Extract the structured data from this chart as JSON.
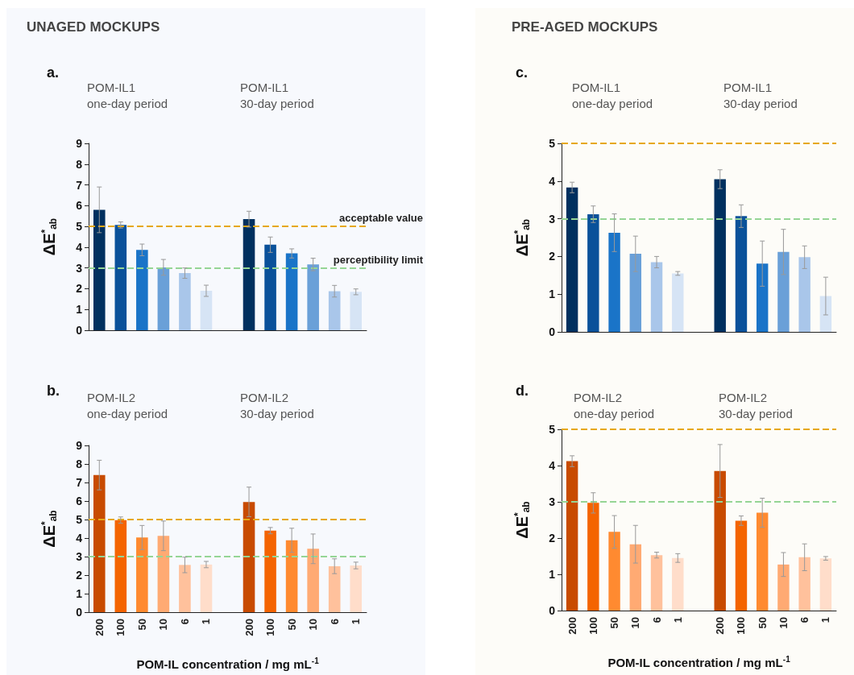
{
  "chart_data": [
    {
      "type": "bar",
      "title": "UNAGED MOCKUPS",
      "ylabel": "ΔE$^{*}$$_{ab}$",
      "annotations": [
        "a.",
        "POM-IL1\none-day period",
        "POM-IL1\n30-day period"
      ],
      "categories": [
        "200",
        "100",
        "50",
        "10",
        "6",
        "1",
        null,
        "200",
        "100",
        "50",
        "10",
        "6",
        "1"
      ],
      "values": [
        5.8,
        5.07,
        3.87,
        3.03,
        2.75,
        1.9,
        null,
        5.35,
        4.12,
        3.7,
        3.17,
        1.88,
        1.85
      ],
      "errors": [
        1.1,
        0.15,
        0.28,
        0.38,
        0.25,
        0.27,
        null,
        0.38,
        0.37,
        0.22,
        0.3,
        0.28,
        0.14
      ],
      "colors": [
        "#00305f",
        "#0a519a",
        "#1a74c8",
        "#6aa0d8",
        "#a9c6ea",
        "#d6e4f5",
        "#ffffff",
        "#00305f",
        "#0a519a",
        "#1a74c8",
        "#6aa0d8",
        "#a9c6ea",
        "#d6e4f5"
      ],
      "ylim": [
        0,
        9
      ],
      "yticks": [
        0,
        1,
        2,
        3,
        4,
        5,
        6,
        7,
        8,
        9
      ],
      "tick_labels": "y",
      "ref_lines": [
        {
          "axis": "y",
          "value": 5,
          "label": "acceptable value",
          "color": "#e6a817",
          "line_style": "dashed"
        },
        {
          "axis": "y",
          "value": 3,
          "label": "perceptibility limit",
          "color": "#95d595",
          "line_style": "dashed"
        }
      ]
    },
    {
      "type": "bar",
      "ylabel": "ΔE$^{*}$$_{ab}$",
      "xlabel": "POM-IL concentration / mg mL$^{-1}$",
      "annotations": [
        "b.",
        "POM-IL2\none-day period",
        "POM-IL2\n30-day period"
      ],
      "categories": [
        "200",
        "100",
        "50",
        "10",
        "6",
        "1",
        null,
        "200",
        "100",
        "50",
        "10",
        "6",
        "1"
      ],
      "values": [
        7.4,
        4.97,
        4.03,
        4.12,
        2.55,
        2.57,
        null,
        5.95,
        4.4,
        3.88,
        3.42,
        2.48,
        2.52
      ],
      "errors": [
        0.8,
        0.17,
        0.65,
        0.8,
        0.42,
        0.17,
        null,
        0.8,
        0.17,
        0.65,
        0.8,
        0.4,
        0.18
      ],
      "colors": [
        "#c84b00",
        "#f46400",
        "#ff8a30",
        "#ffaa73",
        "#ffc19c",
        "#ffddca",
        "#ffffff",
        "#c84b00",
        "#f46400",
        "#ff8a30",
        "#ffaa73",
        "#ffc19c",
        "#ffddca"
      ],
      "ylim": [
        0,
        9
      ],
      "yticks": [
        0,
        1,
        2,
        3,
        4,
        5,
        6,
        7,
        8,
        9
      ],
      "ref_lines": [
        {
          "axis": "y",
          "value": 5,
          "label": null,
          "color": "#e6a817",
          "line_style": "dashed"
        },
        {
          "axis": "y",
          "value": 3,
          "label": null,
          "color": "#95d595",
          "line_style": "dashed"
        }
      ]
    },
    {
      "type": "bar",
      "title": "PRE-AGED MOCKUPS",
      "ylabel": "ΔE$^{*}$$_{ab}$",
      "annotations": [
        "c.",
        "POM-IL1\none-day period",
        "POM-IL1\n30-day period"
      ],
      "categories": [
        "200",
        "100",
        "50",
        "10",
        "6",
        "1",
        null,
        "200",
        "100",
        "50",
        "10",
        "6",
        "1"
      ],
      "values": [
        3.83,
        3.12,
        2.63,
        2.07,
        1.85,
        1.55,
        null,
        4.05,
        3.07,
        1.81,
        2.12,
        1.98,
        0.95
      ],
      "errors": [
        0.14,
        0.22,
        0.5,
        0.47,
        0.15,
        0.05,
        null,
        0.25,
        0.3,
        0.6,
        0.6,
        0.3,
        0.5
      ],
      "colors": [
        "#00305f",
        "#0a519a",
        "#1a74c8",
        "#6aa0d8",
        "#a9c6ea",
        "#d6e4f5",
        "#ffffff",
        "#00305f",
        "#0a519a",
        "#1a74c8",
        "#6aa0d8",
        "#a9c6ea",
        "#d6e4f5"
      ],
      "ylim": [
        0,
        5
      ],
      "yticks": [
        0,
        1,
        2,
        3,
        4,
        5
      ],
      "tick_labels": "y",
      "ref_lines": [
        {
          "axis": "y",
          "value": 5,
          "label": null,
          "color": "#e6a817",
          "line_style": "dashed"
        },
        {
          "axis": "y",
          "value": 3,
          "label": null,
          "color": "#95d595",
          "line_style": "dashed"
        }
      ]
    },
    {
      "type": "bar",
      "ylabel": "ΔE$^{*}$$_{ab}$",
      "xlabel": "POM-IL concentration / mg mL$^{-1}$",
      "annotations": [
        "d.",
        "POM-IL2\none-day period",
        "POM-IL2\n30-day period"
      ],
      "categories": [
        "200",
        "100",
        "50",
        "10",
        "6",
        "1",
        null,
        "200",
        "100",
        "50",
        "10",
        "6",
        "1"
      ],
      "values": [
        4.12,
        2.97,
        2.17,
        1.83,
        1.53,
        1.45,
        null,
        3.85,
        2.48,
        2.7,
        1.27,
        1.47,
        1.44
      ],
      "errors": [
        0.15,
        0.28,
        0.45,
        0.52,
        0.08,
        0.12,
        null,
        0.73,
        0.13,
        0.4,
        0.33,
        0.37,
        0.05
      ],
      "colors": [
        "#c84b00",
        "#f46400",
        "#ff8a30",
        "#ffaa73",
        "#ffc19c",
        "#ffddca",
        "#ffffff",
        "#c84b00",
        "#f46400",
        "#ff8a30",
        "#ffaa73",
        "#ffc19c",
        "#ffddca"
      ],
      "ylim": [
        0,
        5
      ],
      "yticks": [
        0,
        1,
        2,
        3,
        4,
        5
      ],
      "ref_lines": [
        {
          "axis": "y",
          "value": 5,
          "label": null,
          "color": "#e6a817",
          "line_style": "dashed"
        },
        {
          "axis": "y",
          "value": 3,
          "label": null,
          "color": "#95d595",
          "line_style": "dashed"
        }
      ]
    }
  ]
}
